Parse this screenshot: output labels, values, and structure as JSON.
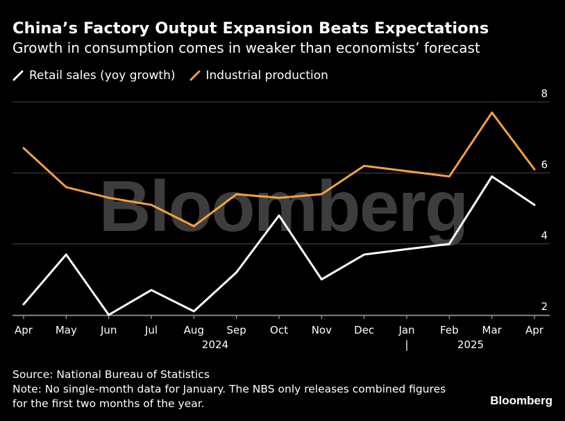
{
  "header": {
    "title": "China’s Factory Output Expansion Beats Expectations",
    "subtitle": "Growth in consumption comes in weaker than economists’ forecast"
  },
  "legend": {
    "items": [
      {
        "label": "Retail sales (yoy growth)",
        "color": "#ffffff"
      },
      {
        "label": "Industrial production",
        "color": "#f5a13f"
      }
    ]
  },
  "watermark": {
    "text": "Bloomberg"
  },
  "chart_data": {
    "type": "line",
    "title": "China’s Factory Output Expansion Beats Expectations",
    "subtitle": "Growth in consumption comes in weaker than economists’ forecast",
    "categories": [
      "Apr",
      "May",
      "Jun",
      "Jul",
      "Aug",
      "Sep",
      "Oct",
      "Nov",
      "Dec",
      "Jan",
      "Feb",
      "Mar",
      "Apr"
    ],
    "year_labels": [
      {
        "label": "2024",
        "at_category": 4.5
      },
      {
        "label": "2025",
        "at_category": 10.5
      }
    ],
    "year_divider_label": "|",
    "year_divider_at_category": 9,
    "series": [
      {
        "name": "Retail sales (yoy growth)",
        "color": "#ffffff",
        "values": [
          2.3,
          3.7,
          2.0,
          2.7,
          2.1,
          3.2,
          4.8,
          3.0,
          3.7,
          3.85,
          4.0,
          5.9,
          5.1
        ]
      },
      {
        "name": "Industrial production",
        "color": "#f5a13f",
        "values": [
          6.7,
          5.6,
          5.3,
          5.1,
          4.5,
          5.4,
          5.3,
          5.4,
          6.2,
          6.05,
          5.9,
          7.7,
          6.1
        ]
      }
    ],
    "xlabel": "",
    "ylabel": "",
    "ylim": [
      2,
      8
    ],
    "yticks": [
      2,
      4,
      6,
      8
    ],
    "y_axis_side": "right",
    "grid": true
  },
  "footer": {
    "source": "Source: National Bureau of Statistics",
    "note_line1": "Note: No single-month data for January. The NBS only releases combined figures",
    "note_line2": "for the first two months of the year.",
    "brand": "Bloomberg"
  }
}
